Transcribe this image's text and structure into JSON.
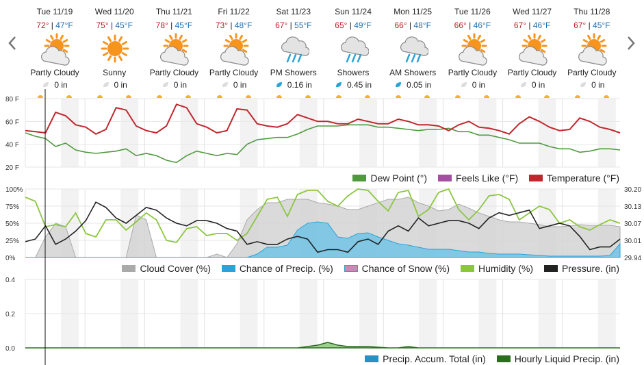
{
  "nav": {
    "prev_icon": "chevron-left-icon",
    "next_icon": "chevron-right-icon"
  },
  "days": [
    {
      "date": "Tue 11/19",
      "hi": "72°",
      "lo": "47°F",
      "icon": "partly-cloudy-icon",
      "cond": "Partly Cloudy",
      "precip": "0 in",
      "precip_type": "none"
    },
    {
      "date": "Wed 11/20",
      "hi": "75°",
      "lo": "45°F",
      "icon": "sunny-icon",
      "cond": "Sunny",
      "precip": "0 in",
      "precip_type": "none"
    },
    {
      "date": "Thu 11/21",
      "hi": "78°",
      "lo": "45°F",
      "icon": "partly-cloudy-icon",
      "cond": "Partly Cloudy",
      "precip": "0 in",
      "precip_type": "none"
    },
    {
      "date": "Fri 11/22",
      "hi": "73°",
      "lo": "48°F",
      "icon": "partly-cloudy-icon",
      "cond": "Partly Cloudy",
      "precip": "0 in",
      "precip_type": "none"
    },
    {
      "date": "Sat 11/23",
      "hi": "67°",
      "lo": "55°F",
      "icon": "showers-icon",
      "cond": "PM Showers",
      "precip": "0.16 in",
      "precip_type": "rain"
    },
    {
      "date": "Sun 11/24",
      "hi": "65°",
      "lo": "49°F",
      "icon": "showers-icon",
      "cond": "Showers",
      "precip": "0.45 in",
      "precip_type": "rain"
    },
    {
      "date": "Mon 11/25",
      "hi": "66°",
      "lo": "48°F",
      "icon": "showers-icon",
      "cond": "AM Showers",
      "precip": "0.05 in",
      "precip_type": "rain"
    },
    {
      "date": "Tue 11/26",
      "hi": "66°",
      "lo": "46°F",
      "icon": "partly-cloudy-icon",
      "cond": "Partly Cloudy",
      "precip": "0 in",
      "precip_type": "none"
    },
    {
      "date": "Wed 11/27",
      "hi": "67°",
      "lo": "46°F",
      "icon": "partly-cloudy-icon",
      "cond": "Partly Cloudy",
      "precip": "0 in",
      "precip_type": "none"
    },
    {
      "date": "Thu 11/28",
      "hi": "67°",
      "lo": "45°F",
      "icon": "partly-cloudy-icon",
      "cond": "Partly Cloudy",
      "precip": "0 in",
      "precip_type": "none"
    }
  ],
  "colors": {
    "temperature": "#c0272d",
    "dew_point": "#4f9a3e",
    "feels_like": "#a350a3",
    "cloud_cover": "#aaaaaa",
    "chance_precip": "#2aa3d6",
    "chance_snow": "#c78bb8",
    "humidity": "#8cc63f",
    "pressure": "#222222",
    "accum": "#2b8fc4",
    "hourly": "#2a6e1e",
    "hi": "#b81f25",
    "lo": "#1f6fb0"
  },
  "chart_data": [
    {
      "type": "line",
      "name": "temperature",
      "y_ticks": [
        "80 F",
        "60 F",
        "40 F",
        "20 F"
      ],
      "ylim": [
        20,
        80
      ],
      "hours_per_point": 6,
      "series": [
        {
          "name": "Dew Point (°)",
          "key": "dew_point",
          "values": [
            50,
            47,
            45,
            38,
            41,
            35,
            33,
            32,
            33,
            34,
            36,
            30,
            32,
            30,
            26,
            24,
            30,
            34,
            32,
            30,
            32,
            31,
            40,
            44,
            45,
            46,
            46,
            49,
            53,
            56,
            56,
            56,
            57,
            57,
            57,
            55,
            55,
            54,
            53,
            52,
            53,
            53,
            54,
            51,
            51,
            48,
            48,
            46,
            44,
            41,
            41,
            41,
            38,
            36,
            36,
            33,
            34,
            36,
            36,
            35
          ]
        },
        {
          "name": "Feels Like (°F)",
          "key": "feels_like",
          "values": []
        },
        {
          "name": "Temperature (°F)",
          "key": "temperature",
          "values": [
            52,
            51,
            50,
            68,
            65,
            57,
            55,
            49,
            53,
            72,
            70,
            56,
            52,
            50,
            56,
            75,
            72,
            58,
            55,
            50,
            52,
            71,
            70,
            58,
            56,
            55,
            58,
            66,
            63,
            60,
            60,
            58,
            58,
            62,
            60,
            58,
            58,
            62,
            60,
            57,
            57,
            56,
            52,
            57,
            60,
            55,
            54,
            52,
            49,
            58,
            64,
            60,
            55,
            52,
            53,
            63,
            60,
            55,
            53,
            50
          ]
        }
      ],
      "legend": [
        "Dew Point (°)",
        "Feels Like (°F)",
        "Temperature (°F)"
      ]
    },
    {
      "type": "area",
      "name": "conditions",
      "y_ticks_left": [
        "100%",
        "75%",
        "50%",
        "25%",
        "0%"
      ],
      "y_ticks_right": [
        "30.20",
        "30.13",
        "30.07",
        "30.01",
        "29.94"
      ],
      "ylim_left": [
        0,
        100
      ],
      "ylim_right": [
        29.94,
        30.2
      ],
      "hours_per_point": 6,
      "series": [
        {
          "name": "Cloud Cover (%)",
          "key": "cloud_cover",
          "values": [
            0,
            0,
            30,
            50,
            45,
            0,
            0,
            0,
            0,
            0,
            0,
            62,
            55,
            0,
            0,
            0,
            0,
            0,
            0,
            5,
            0,
            20,
            55,
            70,
            80,
            80,
            85,
            85,
            85,
            80,
            78,
            75,
            70,
            70,
            75,
            80,
            85,
            85,
            88,
            80,
            75,
            68,
            70,
            78,
            72,
            65,
            60,
            55,
            52,
            52,
            50,
            48,
            45,
            45,
            46,
            48,
            47,
            47,
            47,
            45
          ]
        },
        {
          "name": "Chance of Precip. (%)",
          "key": "chance_precip",
          "values": [
            0,
            0,
            0,
            0,
            0,
            0,
            0,
            0,
            0,
            0,
            0,
            0,
            0,
            0,
            0,
            0,
            0,
            0,
            0,
            0,
            0,
            0,
            0,
            5,
            15,
            15,
            18,
            40,
            50,
            52,
            50,
            30,
            28,
            35,
            36,
            30,
            25,
            20,
            18,
            15,
            12,
            12,
            12,
            10,
            8,
            8,
            6,
            5,
            5,
            5,
            4,
            3,
            2,
            2,
            2,
            2,
            2,
            2,
            3,
            20
          ]
        },
        {
          "name": "Chance of Snow (%)",
          "key": "chance_snow",
          "values": []
        },
        {
          "name": "Humidity (%)",
          "key": "humidity",
          "values": [
            88,
            82,
            45,
            48,
            45,
            65,
            35,
            30,
            55,
            55,
            40,
            52,
            65,
            55,
            25,
            22,
            42,
            45,
            32,
            35,
            35,
            25,
            35,
            60,
            85,
            88,
            60,
            92,
            98,
            98,
            82,
            75,
            90,
            100,
            98,
            82,
            68,
            95,
            98,
            60,
            70,
            95,
            100,
            70,
            55,
            70,
            90,
            92,
            85,
            55,
            65,
            75,
            70,
            50,
            55,
            45,
            40,
            48,
            55,
            50
          ]
        },
        {
          "name": "Pressure. (in)",
          "key": "pressure",
          "values": [
            30.0,
            30.01,
            30.06,
            29.99,
            30.01,
            30.04,
            30.08,
            30.15,
            30.13,
            30.09,
            30.07,
            30.1,
            30.13,
            30.12,
            30.09,
            30.07,
            30.06,
            30.08,
            30.08,
            30.07,
            30.05,
            30.04,
            29.99,
            30.0,
            29.99,
            29.99,
            30.01,
            30.02,
            30.01,
            29.96,
            29.97,
            29.97,
            29.96,
            30.0,
            30.01,
            29.99,
            30.04,
            30.06,
            30.04,
            30.09,
            30.06,
            30.07,
            30.08,
            30.08,
            30.07,
            30.05,
            30.09,
            30.11,
            30.1,
            30.11,
            30.12,
            30.05,
            30.06,
            30.07,
            30.06,
            30.02,
            29.97,
            29.98,
            29.98,
            30.01
          ]
        }
      ],
      "legend": [
        "Cloud Cover (%)",
        "Chance of Precip. (%)",
        "Chance of Snow (%)",
        "Humidity (%)",
        "Pressure. (in)"
      ]
    },
    {
      "type": "area",
      "name": "precipitation",
      "y_ticks": [
        "0.4",
        "0.2",
        "0.0"
      ],
      "ylim": [
        0,
        0.5
      ],
      "hours_per_point": 6,
      "series": [
        {
          "name": "Precip. Accum. Total (in)",
          "key": "accum",
          "values": []
        },
        {
          "name": "Hourly Liquid Precip. (in)",
          "key": "hourly",
          "values": [
            0,
            0,
            0,
            0,
            0,
            0,
            0,
            0,
            0,
            0,
            0,
            0,
            0,
            0,
            0,
            0,
            0,
            0,
            0,
            0,
            0,
            0,
            0,
            0,
            0,
            0,
            0,
            0,
            0.01,
            0.02,
            0.04,
            0.02,
            0.01,
            0.01,
            0.01,
            0.005,
            0,
            0,
            0.01,
            0,
            0,
            0,
            0,
            0,
            0,
            0,
            0,
            0,
            0,
            0,
            0,
            0,
            0,
            0,
            0,
            0,
            0,
            0,
            0,
            0
          ]
        }
      ],
      "legend": [
        "Precip. Accum. Total (in)",
        "Hourly Liquid Precip. (in)"
      ]
    }
  ]
}
